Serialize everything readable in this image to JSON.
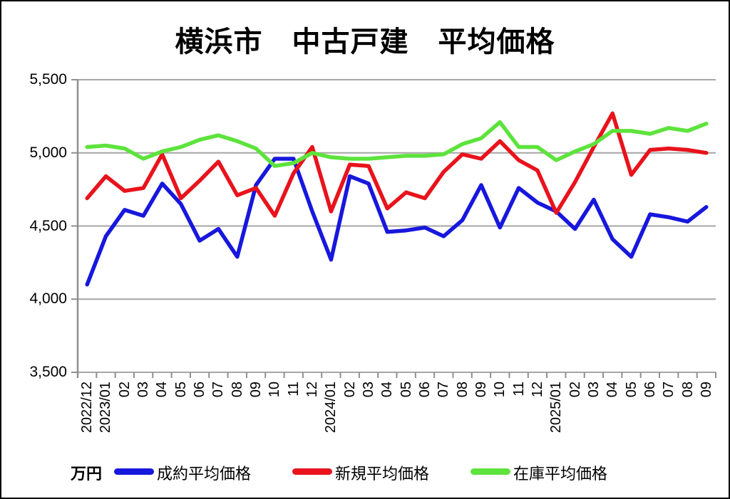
{
  "title": "横浜市　中古戸建　平均価格",
  "unit_label": "万円",
  "colors": {
    "contract_blue": "#1717dd",
    "new_red": "#e8131c",
    "inventory_green": "#5de33c",
    "gridline_gray": "#a6a6a6",
    "axis_gray": "#8f8f8f"
  },
  "chart_data": {
    "type": "line",
    "title": "横浜市　中古戸建　平均価格",
    "ylabel": "万円",
    "ylim": [
      3500,
      5500
    ],
    "ytick_values": [
      5500,
      5000,
      4500,
      4000,
      3500
    ],
    "ytick_labels": [
      "5,500",
      "5,000",
      "4,500",
      "4,000",
      "3,500"
    ],
    "grid": true,
    "legend_position": "bottom",
    "categories": [
      "2022/12",
      "2023/01",
      "02",
      "03",
      "04",
      "05",
      "06",
      "07",
      "08",
      "09",
      "10",
      "11",
      "12",
      "2024/01",
      "02",
      "03",
      "04",
      "05",
      "06",
      "07",
      "08",
      "09",
      "10",
      "11",
      "12",
      "2025/01",
      "02",
      "03",
      "04",
      "05",
      "06",
      "07",
      "08",
      "09"
    ],
    "series": [
      {
        "key": "contract",
        "name": "成約平均価格",
        "color": "#1717dd",
        "values": [
          4100,
          4430,
          4610,
          4570,
          4790,
          4650,
          4400,
          4480,
          4290,
          4780,
          4960,
          4960,
          4600,
          4270,
          4840,
          4790,
          4460,
          4470,
          4490,
          4430,
          4540,
          4780,
          4490,
          4760,
          4660,
          4600,
          4480,
          4680,
          4410,
          4290,
          4580,
          4560,
          4530,
          4630
        ]
      },
      {
        "key": "new",
        "name": "新規平均価格",
        "color": "#e8131c",
        "values": [
          4690,
          4840,
          4740,
          4760,
          4990,
          4690,
          4810,
          4940,
          4710,
          4760,
          4570,
          4860,
          5040,
          4600,
          4920,
          4910,
          4620,
          4730,
          4690,
          4870,
          4990,
          4960,
          5080,
          4950,
          4880,
          4590,
          4800,
          5040,
          5270,
          4850,
          5020,
          5030,
          5020,
          5000
        ]
      },
      {
        "key": "inventory",
        "name": "在庫平均価格",
        "color": "#5de33c",
        "values": [
          5040,
          5050,
          5030,
          4960,
          5010,
          5040,
          5090,
          5120,
          5080,
          5030,
          4910,
          4930,
          5000,
          4970,
          4960,
          4960,
          4970,
          4980,
          4980,
          4990,
          5060,
          5100,
          5210,
          5040,
          5040,
          4950,
          5010,
          5060,
          5150,
          5150,
          5130,
          5170,
          5150,
          5200
        ]
      }
    ]
  }
}
